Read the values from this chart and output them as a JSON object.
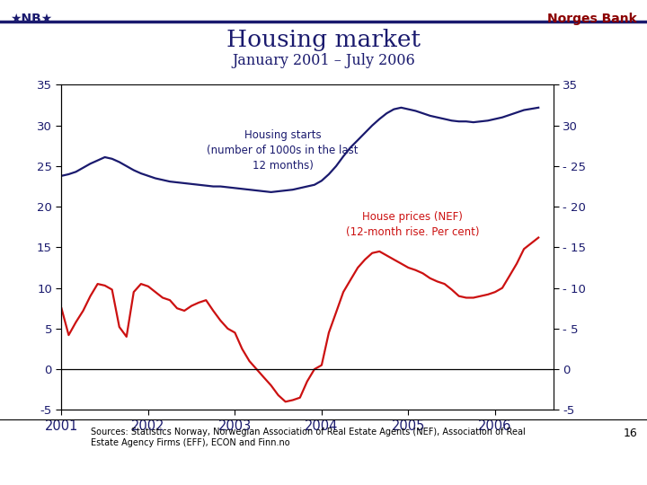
{
  "title": "Housing market",
  "subtitle": "January 2001 – July 2006",
  "source_text": "Sources: Statistics Norway, Norwegian Association of Real Estate Agents (NEF), Association of Real\nEstate Agency Firms (EFF), ECON and Finn.no",
  "page_number": "16",
  "norges_bank_text": "Norges Bank",
  "nb_logo_text": "★NB★",
  "ylim": [
    -5,
    35
  ],
  "yticks": [
    -5,
    0,
    5,
    10,
    15,
    20,
    25,
    30,
    35
  ],
  "right_ytick_labels": [
    "  -5",
    "  0",
    "- 5",
    "- 10",
    "- 15",
    "- 20",
    "- 25",
    "  30",
    "  35"
  ],
  "housing_starts_label": "Housing starts\n(number of 1000s in the last\n12 months)",
  "house_prices_label": "House prices (NEF)\n(12-month rise. Per cent)",
  "housing_starts_color": "#1a1a6e",
  "house_prices_color": "#cc1111",
  "title_color": "#1a1a6e",
  "line_width": 1.6,
  "annotation_fontsize": 8.5,
  "housing_starts": {
    "t": [
      2001.0,
      2001.083,
      2001.167,
      2001.25,
      2001.333,
      2001.417,
      2001.5,
      2001.583,
      2001.667,
      2001.75,
      2001.833,
      2001.917,
      2002.0,
      2002.083,
      2002.167,
      2002.25,
      2002.333,
      2002.417,
      2002.5,
      2002.583,
      2002.667,
      2002.75,
      2002.833,
      2002.917,
      2003.0,
      2003.083,
      2003.167,
      2003.25,
      2003.333,
      2003.417,
      2003.5,
      2003.583,
      2003.667,
      2003.75,
      2003.833,
      2003.917,
      2004.0,
      2004.083,
      2004.167,
      2004.25,
      2004.333,
      2004.417,
      2004.5,
      2004.583,
      2004.667,
      2004.75,
      2004.833,
      2004.917,
      2005.0,
      2005.083,
      2005.167,
      2005.25,
      2005.333,
      2005.417,
      2005.5,
      2005.583,
      2005.667,
      2005.75,
      2005.833,
      2005.917,
      2006.0,
      2006.083,
      2006.167,
      2006.25,
      2006.333,
      2006.5
    ],
    "v": [
      23.8,
      24.0,
      24.3,
      24.8,
      25.3,
      25.7,
      26.1,
      25.9,
      25.5,
      25.0,
      24.5,
      24.1,
      23.8,
      23.5,
      23.3,
      23.1,
      23.0,
      22.9,
      22.8,
      22.7,
      22.6,
      22.5,
      22.5,
      22.4,
      22.3,
      22.2,
      22.1,
      22.0,
      21.9,
      21.8,
      21.9,
      22.0,
      22.1,
      22.3,
      22.5,
      22.7,
      23.2,
      24.0,
      25.0,
      26.2,
      27.3,
      28.2,
      29.1,
      30.0,
      30.8,
      31.5,
      32.0,
      32.2,
      32.0,
      31.8,
      31.5,
      31.2,
      31.0,
      30.8,
      30.6,
      30.5,
      30.5,
      30.4,
      30.5,
      30.6,
      30.8,
      31.0,
      31.3,
      31.6,
      31.9,
      32.2
    ]
  },
  "house_prices": {
    "t": [
      2001.0,
      2001.083,
      2001.167,
      2001.25,
      2001.333,
      2001.417,
      2001.5,
      2001.583,
      2001.667,
      2001.75,
      2001.833,
      2001.917,
      2002.0,
      2002.083,
      2002.167,
      2002.25,
      2002.333,
      2002.417,
      2002.5,
      2002.583,
      2002.667,
      2002.75,
      2002.833,
      2002.917,
      2003.0,
      2003.083,
      2003.167,
      2003.25,
      2003.333,
      2003.417,
      2003.5,
      2003.583,
      2003.667,
      2003.75,
      2003.833,
      2003.917,
      2004.0,
      2004.083,
      2004.167,
      2004.25,
      2004.333,
      2004.417,
      2004.5,
      2004.583,
      2004.667,
      2004.75,
      2004.833,
      2004.917,
      2005.0,
      2005.083,
      2005.167,
      2005.25,
      2005.333,
      2005.417,
      2005.5,
      2005.583,
      2005.667,
      2005.75,
      2005.833,
      2005.917,
      2006.0,
      2006.083,
      2006.167,
      2006.25,
      2006.333,
      2006.5
    ],
    "v": [
      7.5,
      4.2,
      5.8,
      7.2,
      9.0,
      10.5,
      10.3,
      9.8,
      5.2,
      4.0,
      9.5,
      10.5,
      10.2,
      9.5,
      8.8,
      8.5,
      7.5,
      7.2,
      7.8,
      8.2,
      8.5,
      7.2,
      6.0,
      5.0,
      4.5,
      2.5,
      1.0,
      0.0,
      -1.0,
      -2.0,
      -3.2,
      -4.0,
      -3.8,
      -3.5,
      -1.5,
      0.0,
      0.5,
      4.5,
      7.0,
      9.5,
      11.0,
      12.5,
      13.5,
      14.3,
      14.5,
      14.0,
      13.5,
      13.0,
      12.5,
      12.2,
      11.8,
      11.2,
      10.8,
      10.5,
      9.8,
      9.0,
      8.8,
      8.8,
      9.0,
      9.2,
      9.5,
      10.0,
      11.5,
      13.0,
      14.8,
      16.2
    ]
  }
}
